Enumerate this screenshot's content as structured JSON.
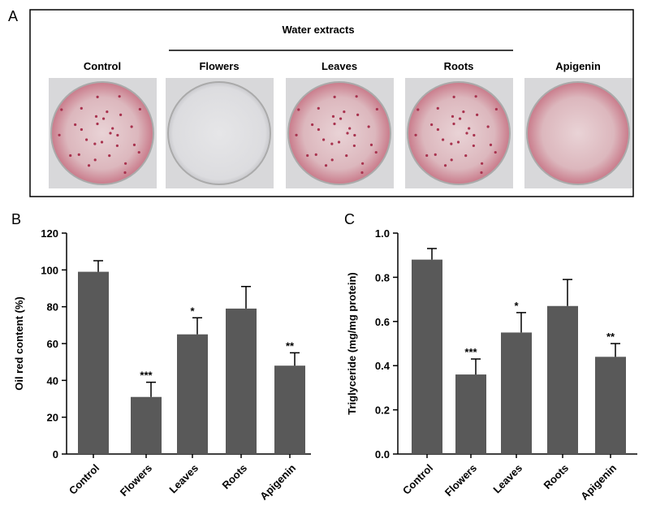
{
  "panel_a": {
    "label": "A",
    "group_label": "Water extracts",
    "samples": [
      "Control",
      "Flowers",
      "Leaves",
      "Roots",
      "Apigenin"
    ]
  },
  "chart_data": [
    {
      "type": "bar",
      "panel": "B",
      "y_label": "Oil red content (%)",
      "categories": [
        "Control",
        "Flowers",
        "Leaves",
        "Roots",
        "Apigenin"
      ],
      "series": [
        {
          "color": "#595959",
          "values": [
            99,
            31,
            65,
            79,
            48
          ],
          "errors": [
            6,
            8,
            9,
            12,
            7
          ]
        }
      ],
      "annotations": [
        null,
        "***",
        "*",
        null,
        "**"
      ],
      "ylim": [
        0,
        120
      ],
      "yticks": [
        0,
        20,
        40,
        60,
        80,
        100,
        120
      ]
    },
    {
      "type": "bar",
      "panel": "C",
      "y_label": "Triglyceride (mg/mg protein)",
      "categories": [
        "Control",
        "Flowers",
        "Leaves",
        "Roots",
        "Apigenin"
      ],
      "series": [
        {
          "color": "#595959",
          "values": [
            0.88,
            0.36,
            0.55,
            0.67,
            0.44
          ],
          "errors": [
            0.05,
            0.07,
            0.09,
            0.12,
            0.06
          ]
        }
      ],
      "annotations": [
        null,
        "***",
        "*",
        null,
        "**"
      ],
      "ylim": [
        0,
        1
      ],
      "yticks": [
        {
          "value": 0,
          "label": "0.0"
        },
        0.2,
        0.4,
        0.6,
        0.8,
        {
          "value": 1,
          "label": "1.0"
        }
      ]
    }
  ]
}
